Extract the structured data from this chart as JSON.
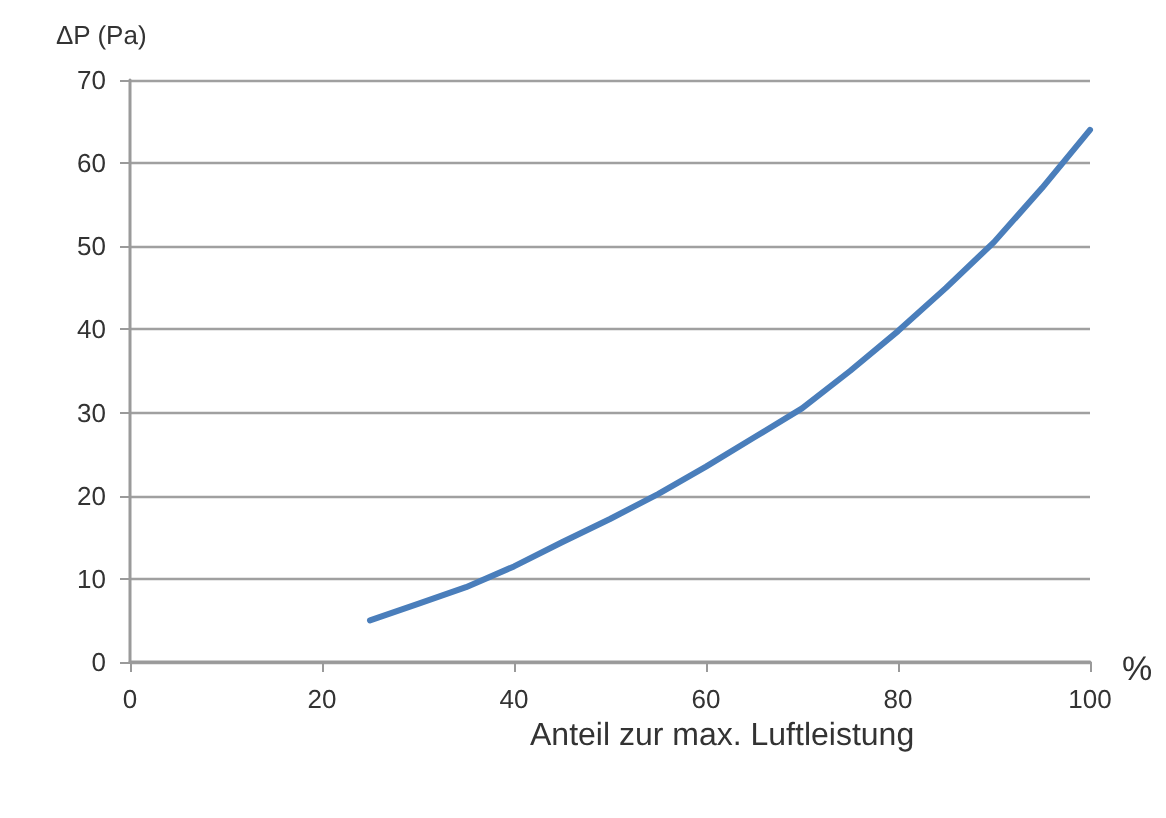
{
  "chart_data": {
    "type": "line",
    "xlabel": "Anteil zur max. Luftleistung",
    "ylabel": "ΔP (Pa)",
    "annotations": [
      "%"
    ],
    "x": [
      25,
      30,
      35,
      40,
      45,
      50,
      55,
      60,
      65,
      70,
      75,
      80,
      85,
      90,
      95,
      100
    ],
    "series": [
      {
        "color": "#4a7ebb",
        "values": [
          5,
          7,
          9,
          11.5,
          14.4,
          17.2,
          20.2,
          23.5,
          27,
          30.5,
          35,
          39.8,
          45,
          50.5,
          57,
          64
        ]
      }
    ],
    "xlim": [
      0,
      100
    ],
    "xticks": [
      0,
      20,
      40,
      60,
      80,
      100
    ],
    "ylim": [
      0,
      70
    ],
    "yticks": [
      0,
      10,
      20,
      30,
      40,
      50,
      60,
      70
    ],
    "grid": "y",
    "marker": "none",
    "line_style": "solid"
  }
}
